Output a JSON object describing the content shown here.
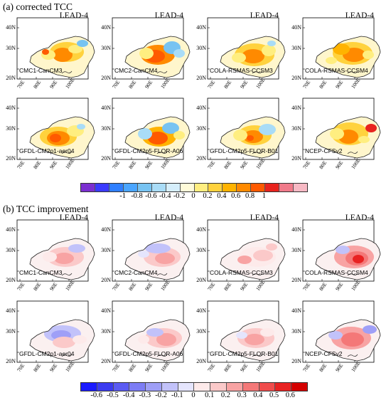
{
  "section_a": {
    "title": "(a) corrected TCC",
    "panels": [
      {
        "lead": "LEAD-4",
        "model": "CMC1-CanCM3"
      },
      {
        "lead": "LEAD-4",
        "model": "CMC2-CanCM4"
      },
      {
        "lead": "LEAD-4",
        "model": "COLA-RSMAS-CCSM3"
      },
      {
        "lead": "LEAD-4",
        "model": "COLA-RSMAS-CCSM4"
      },
      {
        "lead": "",
        "model": "GFDL-CM2p1-aer04"
      },
      {
        "lead": "",
        "model": "GFDL-CM2p5-FLOR-A06"
      },
      {
        "lead": "",
        "model": "GFDL-CM2p5-FLOR-B01"
      },
      {
        "lead": "",
        "model": "NCEP-CFSv2"
      }
    ],
    "colorbar": {
      "ticks": [
        "-1",
        "-0.8",
        "-0.6",
        "-0.4",
        "-0.2",
        "0",
        "0.2",
        "0.4",
        "0.6",
        "0.8",
        "1"
      ],
      "colors": [
        "#7b2fd0",
        "#3b3bff",
        "#2f7fff",
        "#4aa5ff",
        "#77c3f2",
        "#a9dcf7",
        "#d5eefb",
        "#fffbd9",
        "#ffee80",
        "#ffd23d",
        "#ffb300",
        "#ff8a00",
        "#ff5a00",
        "#e8231e",
        "#f07a8a",
        "#f7b9c4"
      ]
    }
  },
  "section_b": {
    "title": "(b) TCC improvement",
    "panels": [
      {
        "lead": "LEAD-4",
        "model": "CMC1-CanCM3"
      },
      {
        "lead": "LEAD-4",
        "model": "CMC2-CanCM4"
      },
      {
        "lead": "LEAD-4",
        "model": "COLA-RSMAS-CCSM3"
      },
      {
        "lead": "LEAD-4",
        "model": "COLA-RSMAS-CCSM4"
      },
      {
        "lead": "",
        "model": "GFDL-CM2p1-aer04"
      },
      {
        "lead": "",
        "model": "GFDL-CM2p5-FLOR-A06"
      },
      {
        "lead": "",
        "model": "GFDL-CM2p5-FLOR-B01"
      },
      {
        "lead": "",
        "model": "NCEP-CFSv2"
      }
    ],
    "colorbar": {
      "ticks": [
        "-0.6",
        "-0.5",
        "-0.4",
        "-0.3",
        "-0.2",
        "-0.1",
        "0",
        "0.1",
        "0.2",
        "0.3",
        "0.4",
        "0.5",
        "0.6"
      ],
      "colors": [
        "#1a1aff",
        "#3b3bf0",
        "#5b5bf2",
        "#7d7df5",
        "#9f9ff7",
        "#c2c2fa",
        "#e5e5fd",
        "#fdeaea",
        "#fbc9c9",
        "#f8a3a3",
        "#f47878",
        "#f04c4c",
        "#e82222",
        "#d40000"
      ]
    }
  },
  "axes": {
    "lat_ticks": [
      "40N",
      "30N",
      "20N"
    ],
    "lon_ticks": [
      "70E",
      "80E",
      "90E",
      "100E"
    ]
  }
}
